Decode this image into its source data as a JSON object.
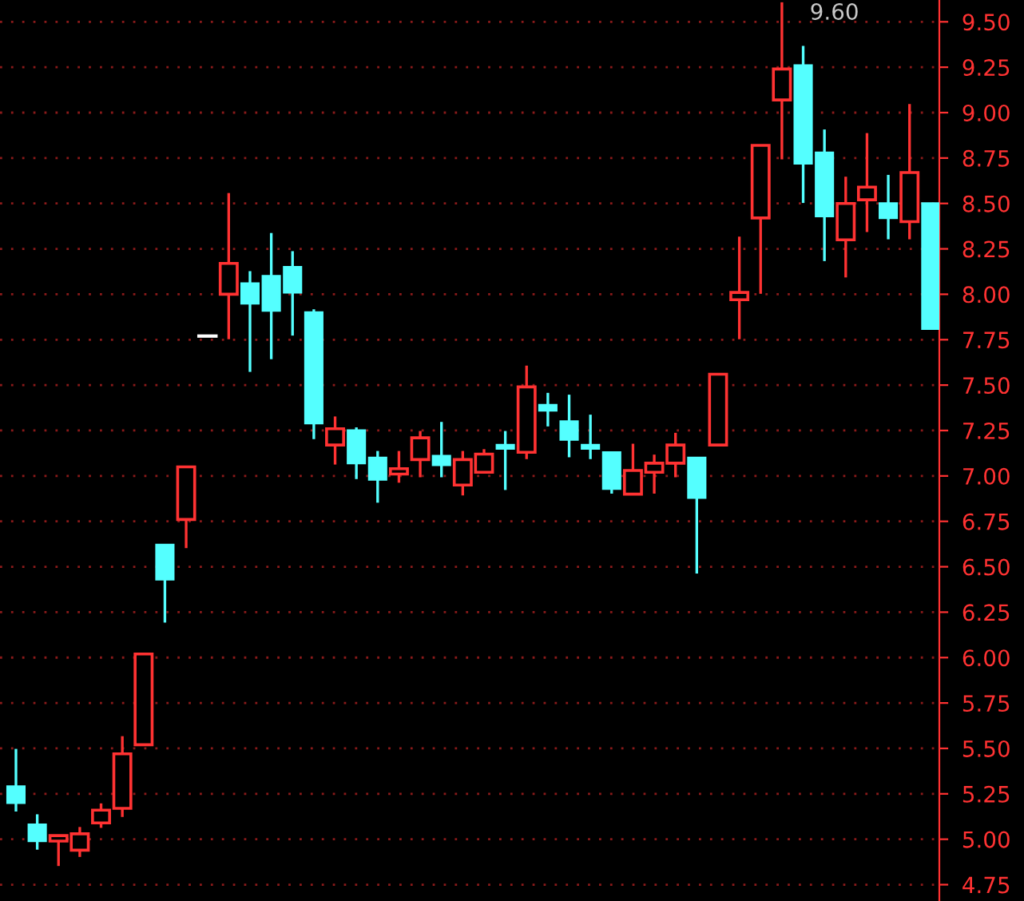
{
  "chart_data": {
    "type": "candlestick",
    "categories": [
      null,
      null,
      null,
      null,
      null,
      null,
      null,
      null,
      null,
      null,
      null,
      null,
      null,
      null,
      null,
      null,
      null,
      null,
      null,
      null,
      null,
      null,
      null,
      null,
      null,
      null,
      null,
      null,
      null,
      null,
      null,
      null,
      null,
      null,
      null,
      null,
      null,
      null,
      null,
      null,
      null,
      null,
      null,
      null
    ],
    "ohlc": [
      [
        5.29,
        5.49,
        5.16,
        5.2
      ],
      [
        5.08,
        5.13,
        4.95,
        4.99
      ],
      [
        4.99,
        5.02,
        4.86,
        5.02
      ],
      [
        4.94,
        5.06,
        4.91,
        5.03
      ],
      [
        5.09,
        5.19,
        5.07,
        5.16
      ],
      [
        5.17,
        5.56,
        5.13,
        5.47
      ],
      [
        5.52,
        6.02,
        5.52,
        6.02
      ],
      [
        6.62,
        6.62,
        6.2,
        6.43
      ],
      [
        6.76,
        7.05,
        6.61,
        7.05
      ],
      [
        7.77,
        7.77,
        7.77,
        7.77
      ],
      [
        8.0,
        8.55,
        7.76,
        8.17
      ],
      [
        8.06,
        8.12,
        7.58,
        7.95
      ],
      [
        8.1,
        8.33,
        7.65,
        7.91
      ],
      [
        8.15,
        8.23,
        7.78,
        8.01
      ],
      [
        7.9,
        7.91,
        7.21,
        7.29
      ],
      [
        7.17,
        7.32,
        7.07,
        7.26
      ],
      [
        7.25,
        7.26,
        6.99,
        7.07
      ],
      [
        7.1,
        7.13,
        6.86,
        6.98
      ],
      [
        7.01,
        7.13,
        6.97,
        7.04
      ],
      [
        7.09,
        7.24,
        7.0,
        7.21
      ],
      [
        7.11,
        7.29,
        7.0,
        7.06
      ],
      [
        6.95,
        7.13,
        6.9,
        7.09
      ],
      [
        7.02,
        7.14,
        7.02,
        7.12
      ],
      [
        7.17,
        7.24,
        6.93,
        7.15
      ],
      [
        7.13,
        7.6,
        7.1,
        7.49
      ],
      [
        7.39,
        7.45,
        7.28,
        7.36
      ],
      [
        7.3,
        7.44,
        7.11,
        7.2
      ],
      [
        7.17,
        7.33,
        7.1,
        7.15
      ],
      [
        7.13,
        7.13,
        6.91,
        6.93
      ],
      [
        6.9,
        7.17,
        6.9,
        7.03
      ],
      [
        7.02,
        7.11,
        6.91,
        7.07
      ],
      [
        7.07,
        7.23,
        7.0,
        7.17
      ],
      [
        7.1,
        7.1,
        6.47,
        6.88
      ],
      [
        7.17,
        7.56,
        7.17,
        7.56
      ],
      [
        7.97,
        8.31,
        7.76,
        8.01
      ],
      [
        8.42,
        8.82,
        8.01,
        8.82
      ],
      [
        9.07,
        9.6,
        8.75,
        9.24
      ],
      [
        9.26,
        9.36,
        8.51,
        8.72
      ],
      [
        8.78,
        8.9,
        8.19,
        8.43
      ],
      [
        8.3,
        8.64,
        8.1,
        8.5
      ],
      [
        8.52,
        8.88,
        8.35,
        8.59
      ],
      [
        8.5,
        8.65,
        8.31,
        8.42
      ],
      [
        8.4,
        9.04,
        8.31,
        8.67
      ],
      [
        8.5,
        8.5,
        7.81,
        7.81
      ]
    ],
    "colors": [
      "#54ffff",
      "#54ffff",
      "#ff3232",
      "#ff3232",
      "#ff3232",
      "#ff3232",
      "#ff3232",
      "#54ffff",
      "#ff3232",
      "#ffffff",
      "#ff3232",
      "#54ffff",
      "#54ffff",
      "#54ffff",
      "#54ffff",
      "#ff3232",
      "#54ffff",
      "#54ffff",
      "#ff3232",
      "#ff3232",
      "#54ffff",
      "#ff3232",
      "#ff3232",
      "#54ffff",
      "#ff3232",
      "#54ffff",
      "#54ffff",
      "#54ffff",
      "#54ffff",
      "#ff3232",
      "#ff3232",
      "#ff3232",
      "#54ffff",
      "#ff3232",
      "#ff3232",
      "#ff3232",
      "#ff3232",
      "#54ffff",
      "#54ffff",
      "#ff3232",
      "#ff3232",
      "#54ffff",
      "#ff3232",
      "#54ffff"
    ],
    "ylim": [
      4.66,
      9.62
    ],
    "yticks": [
      {
        "value": 4.75,
        "label": "4.75"
      },
      {
        "value": 5.0,
        "label": "5.00"
      },
      {
        "value": 5.25,
        "label": "5.25"
      },
      {
        "value": 5.5,
        "label": "5.50"
      },
      {
        "value": 5.75,
        "label": "5.75"
      },
      {
        "value": 6.0,
        "label": "6.00"
      },
      {
        "value": 6.25,
        "label": "6.25"
      },
      {
        "value": 6.5,
        "label": "6.50"
      },
      {
        "value": 6.75,
        "label": "6.75"
      },
      {
        "value": 7.0,
        "label": "7.00"
      },
      {
        "value": 7.25,
        "label": "7.25"
      },
      {
        "value": 7.5,
        "label": "7.50"
      },
      {
        "value": 7.75,
        "label": "7.75"
      },
      {
        "value": 8.0,
        "label": "8.00"
      },
      {
        "value": 8.25,
        "label": "8.25"
      },
      {
        "value": 8.5,
        "label": "8.50"
      },
      {
        "value": 8.75,
        "label": "8.75"
      },
      {
        "value": 9.0,
        "label": "9.00"
      },
      {
        "value": 9.25,
        "label": "9.25"
      },
      {
        "value": 9.5,
        "label": "9.50"
      }
    ],
    "grid": "y",
    "annotations": [
      "9.60"
    ]
  }
}
